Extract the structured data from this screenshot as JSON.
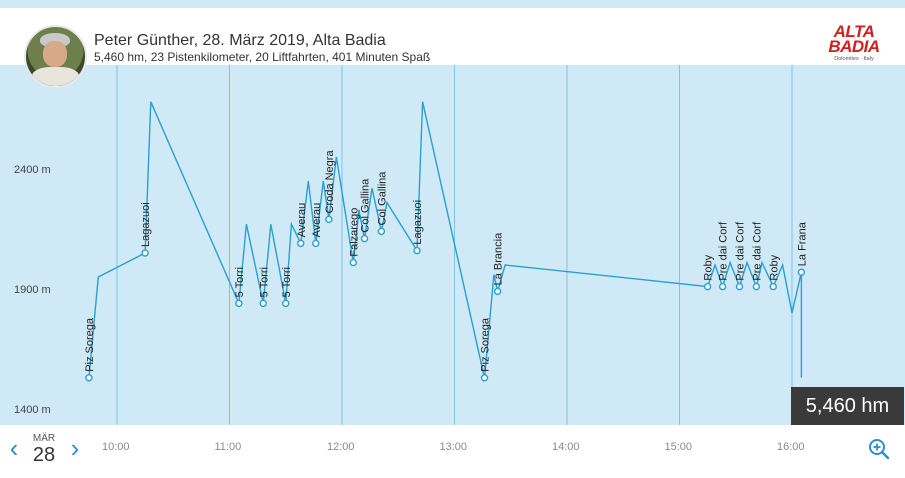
{
  "header": {
    "title": "Peter Günther, 28. März 2019, Alta Badia",
    "subtitle": "5,460 hm, 23 Pistenkilometer, 20 Liftfahrten, 401 Minuten Spaß"
  },
  "logo": {
    "line1": "ALTA",
    "line2": "BADIA",
    "line3": "Dolomites · Italy"
  },
  "badge": {
    "value": "5,460 hm"
  },
  "date": {
    "month": "MÄR",
    "day": "28"
  },
  "x_ticks": [
    "10:00",
    "11:00",
    "12:00",
    "13:00",
    "14:00",
    "15:00",
    "16:00"
  ],
  "chart_data": {
    "type": "line",
    "y_ticks": [
      "2400 m",
      "1900 m",
      "1400 m"
    ],
    "ylim": [
      1330,
      2720
    ],
    "xlim": [
      "09:30",
      "16:25"
    ],
    "colors": {
      "line": "#2a9fd2",
      "background": "#cfe9f7",
      "grid": "#7cc4e8"
    },
    "points": [
      {
        "t": "09:45",
        "h": 1530
      },
      {
        "t": "09:50",
        "h": 1950
      },
      {
        "t": "10:15",
        "h": 2050
      },
      {
        "t": "10:18",
        "h": 2680
      },
      {
        "t": "11:05",
        "h": 1840
      },
      {
        "t": "11:09",
        "h": 2170
      },
      {
        "t": "11:18",
        "h": 1840
      },
      {
        "t": "11:22",
        "h": 2170
      },
      {
        "t": "11:30",
        "h": 1840
      },
      {
        "t": "11:33",
        "h": 2170
      },
      {
        "t": "11:38",
        "h": 2090
      },
      {
        "t": "11:42",
        "h": 2350
      },
      {
        "t": "11:46",
        "h": 2090
      },
      {
        "t": "11:50",
        "h": 2350
      },
      {
        "t": "11:53",
        "h": 2190
      },
      {
        "t": "11:57",
        "h": 2450
      },
      {
        "t": "12:06",
        "h": 2010
      },
      {
        "t": "12:09",
        "h": 2230
      },
      {
        "t": "12:12",
        "h": 2110
      },
      {
        "t": "12:16",
        "h": 2320
      },
      {
        "t": "12:21",
        "h": 2140
      },
      {
        "t": "12:24",
        "h": 2260
      },
      {
        "t": "12:40",
        "h": 2060
      },
      {
        "t": "12:43",
        "h": 2680
      },
      {
        "t": "13:16",
        "h": 1530
      },
      {
        "t": "13:21",
        "h": 1960
      },
      {
        "t": "13:23",
        "h": 1890
      },
      {
        "t": "13:27",
        "h": 2000
      },
      {
        "t": "15:15",
        "h": 1910
      },
      {
        "t": "15:19",
        "h": 2000
      },
      {
        "t": "15:23",
        "h": 1910
      },
      {
        "t": "15:27",
        "h": 2010
      },
      {
        "t": "15:32",
        "h": 1910
      },
      {
        "t": "15:36",
        "h": 2010
      },
      {
        "t": "15:41",
        "h": 1910
      },
      {
        "t": "15:44",
        "h": 2010
      },
      {
        "t": "15:50",
        "h": 1910
      },
      {
        "t": "15:55",
        "h": 2000
      },
      {
        "t": "16:00",
        "h": 1800
      },
      {
        "t": "16:05",
        "h": 1970
      },
      {
        "t": "16:05",
        "h": 1530
      }
    ],
    "labels": [
      {
        "text": "Piz Sorega",
        "t": "09:45",
        "h": 1530
      },
      {
        "text": "Lagazuoi",
        "t": "10:15",
        "h": 2050
      },
      {
        "text": "5 Torri",
        "t": "11:05",
        "h": 1840
      },
      {
        "text": "5 Torri",
        "t": "11:18",
        "h": 1840
      },
      {
        "text": "5 Torri",
        "t": "11:30",
        "h": 1840
      },
      {
        "text": "Averau",
        "t": "11:38",
        "h": 2090
      },
      {
        "text": "Averau",
        "t": "11:46",
        "h": 2090
      },
      {
        "text": "Croda Negra",
        "t": "11:53",
        "h": 2190
      },
      {
        "text": "Falzarego",
        "t": "12:06",
        "h": 2010
      },
      {
        "text": "Col Gallina",
        "t": "12:12",
        "h": 2110
      },
      {
        "text": "Col Gallina",
        "t": "12:21",
        "h": 2140
      },
      {
        "text": "Lagazuoi",
        "t": "12:40",
        "h": 2060
      },
      {
        "text": "Piz Sorega",
        "t": "13:16",
        "h": 1530
      },
      {
        "text": "La Brancia",
        "t": "13:23",
        "h": 1890
      },
      {
        "text": "Roby",
        "t": "15:15",
        "h": 1910
      },
      {
        "text": "Pre dai Corf",
        "t": "15:23",
        "h": 1910
      },
      {
        "text": "Pre dai Corf",
        "t": "15:32",
        "h": 1910
      },
      {
        "text": "Pre dai Corf",
        "t": "15:41",
        "h": 1910
      },
      {
        "text": "Roby",
        "t": "15:50",
        "h": 1910
      },
      {
        "text": "La Frana",
        "t": "16:05",
        "h": 1970
      }
    ]
  }
}
